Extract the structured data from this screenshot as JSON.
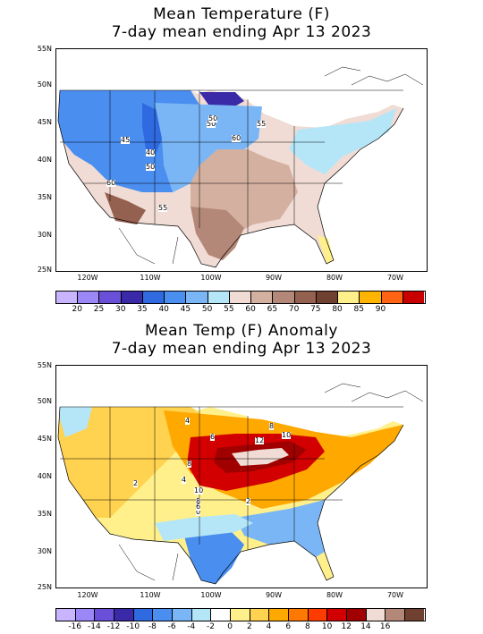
{
  "top": {
    "title_line1": "Mean Temperature (F)",
    "title_line2": "7-day mean ending Apr 13 2023",
    "lat_labels": [
      "55N",
      "50N",
      "45N",
      "40N",
      "35N",
      "30N",
      "25N"
    ],
    "lon_labels": [
      "120W",
      "110W",
      "100W",
      "90W",
      "80W",
      "70W"
    ],
    "contour_labels": [
      "45",
      "50",
      "60",
      "55",
      "40",
      "50",
      "60",
      "55",
      "50"
    ],
    "colorbar": {
      "colors": [
        "#c8b4ff",
        "#9b87f5",
        "#6a50d8",
        "#3a2aa8",
        "#2f6ae0",
        "#4a8ef0",
        "#7ab6f5",
        "#b4e6f8",
        "#f0dcd4",
        "#d4b0a0",
        "#b48878",
        "#946050",
        "#704030",
        "#fff08c",
        "#ffb400",
        "#ff6414",
        "#c80000"
      ],
      "labels": [
        "20",
        "25",
        "30",
        "35",
        "40",
        "45",
        "50",
        "55",
        "60",
        "65",
        "70",
        "75",
        "80",
        "85",
        "90"
      ]
    }
  },
  "bottom": {
    "title_line1": "Mean Temp (F) Anomaly",
    "title_line2": "7-day mean ending Apr 13 2023",
    "lat_labels": [
      "55N",
      "50N",
      "45N",
      "40N",
      "35N",
      "30N",
      "25N"
    ],
    "lon_labels": [
      "120W",
      "110W",
      "100W",
      "90W",
      "80W",
      "70W"
    ],
    "contour_labels": [
      "4",
      "8",
      "12",
      "10",
      "10",
      "8",
      "2",
      "0",
      "6",
      "2",
      "4",
      "8",
      "6"
    ],
    "colorbar": {
      "colors": [
        "#c8b4ff",
        "#9b87f5",
        "#6a50d8",
        "#3a2aa8",
        "#2f6ae0",
        "#4a8ef0",
        "#7ab6f5",
        "#b4e6f8",
        "#ffffff",
        "#fff08c",
        "#ffd250",
        "#ffa800",
        "#ff7800",
        "#ff3c00",
        "#d20000",
        "#a00000",
        "#f0dcd4",
        "#b48878",
        "#704030"
      ],
      "labels": [
        "-16",
        "-14",
        "-12",
        "-10",
        "-8",
        "-6",
        "-4",
        "-2",
        "0",
        "2",
        "4",
        "6",
        "8",
        "10",
        "12",
        "14",
        "16"
      ]
    }
  }
}
